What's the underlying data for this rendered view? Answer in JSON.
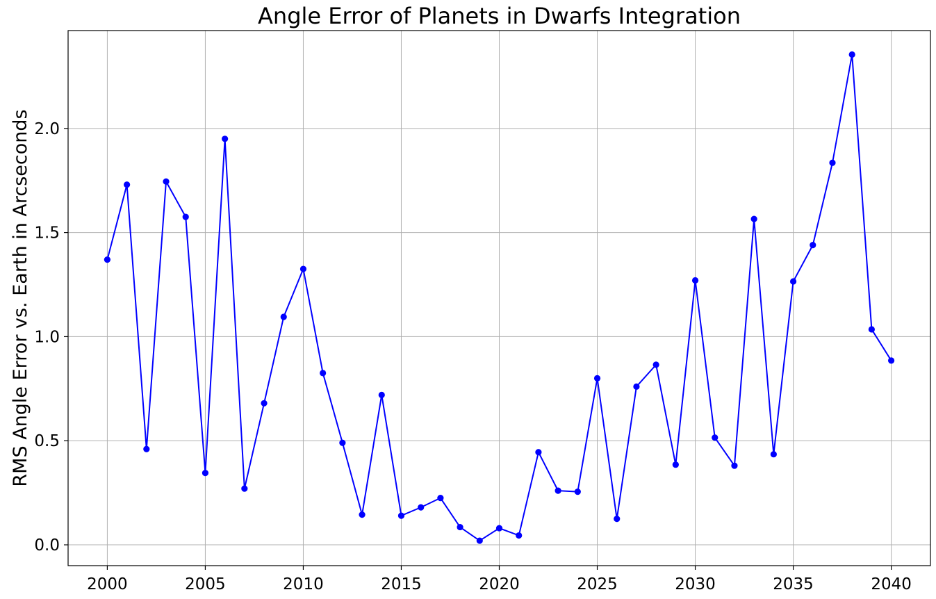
{
  "chart_data": {
    "type": "line",
    "title": "Angle Error of Planets in Dwarfs Integration",
    "xlabel": "",
    "ylabel": "RMS Angle Error vs. Earth in Arcseconds",
    "xlim": [
      1998,
      2042
    ],
    "ylim": [
      -0.1,
      2.47
    ],
    "xticks": [
      2000,
      2005,
      2010,
      2015,
      2020,
      2025,
      2030,
      2035,
      2040
    ],
    "xtick_labels": [
      "2000",
      "2005",
      "2010",
      "2015",
      "2020",
      "2025",
      "2030",
      "2035",
      "2040"
    ],
    "yticks": [
      0.0,
      0.5,
      1.0,
      1.5,
      2.0
    ],
    "ytick_labels": [
      "0.0",
      "0.5",
      "1.0",
      "1.5",
      "2.0"
    ],
    "grid": true,
    "colors": {
      "line": "#0000ff",
      "marker": "#0000ff",
      "grid": "#b0b0b0",
      "axes": "#000000"
    },
    "series": [
      {
        "marker": "circle",
        "x": [
          2000,
          2001,
          2002,
          2003,
          2004,
          2005,
          2006,
          2007,
          2008,
          2009,
          2010,
          2011,
          2012,
          2013,
          2014,
          2015,
          2016,
          2017,
          2018,
          2019,
          2020,
          2021,
          2022,
          2023,
          2024,
          2025,
          2026,
          2027,
          2028,
          2029,
          2030,
          2031,
          2032,
          2033,
          2034,
          2035,
          2036,
          2037,
          2038,
          2039,
          2040
        ],
        "values": [
          1.37,
          1.73,
          0.46,
          1.745,
          1.575,
          0.345,
          1.95,
          0.27,
          0.68,
          1.095,
          1.325,
          0.825,
          0.49,
          0.145,
          0.72,
          0.14,
          0.18,
          0.225,
          0.085,
          0.02,
          0.08,
          0.045,
          0.445,
          0.26,
          0.255,
          0.8,
          0.125,
          0.76,
          0.865,
          0.385,
          1.27,
          0.515,
          0.38,
          1.565,
          0.435,
          1.265,
          1.44,
          1.835,
          2.355,
          1.035,
          0.885
        ]
      }
    ]
  }
}
